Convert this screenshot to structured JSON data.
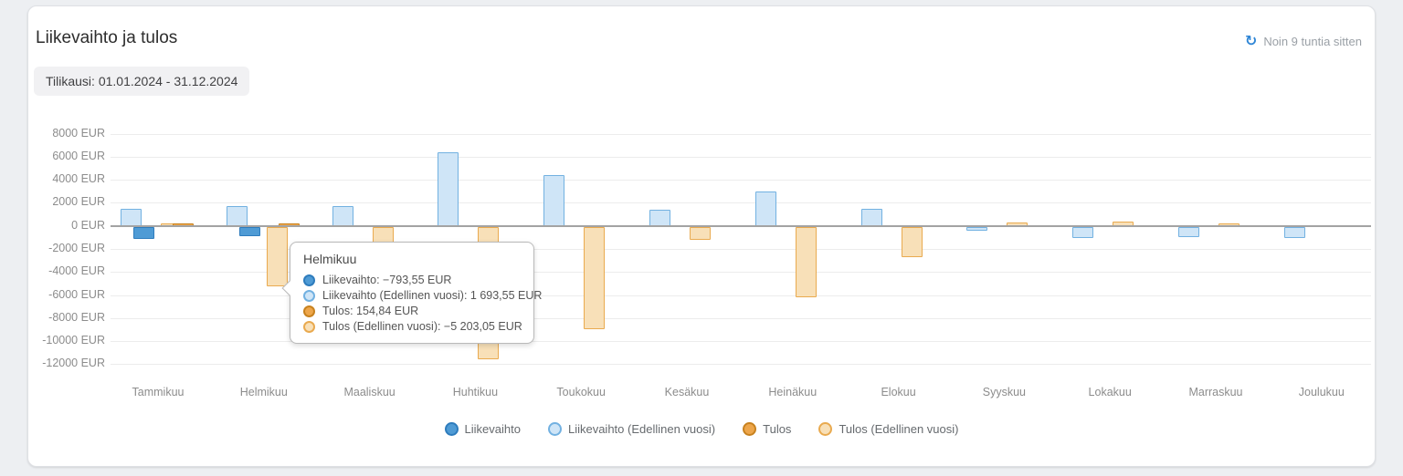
{
  "header": {
    "title": "Liikevaihto ja tulos",
    "period_badge": "Tilikausi: 01.01.2024 - 31.12.2024",
    "refresh_icon": "↻",
    "last_updated": "Noin 9 tuntia sitten"
  },
  "colors": {
    "revenue": {
      "fill": "#4f9bd5",
      "border": "#2e7cbd"
    },
    "revenue_prev": {
      "fill": "#cfe5f7",
      "border": "#72b1e1"
    },
    "result": {
      "fill": "#eda64b",
      "border": "#c8821f"
    },
    "result_prev": {
      "fill": "#f8e0b8",
      "border": "#e9aa4f"
    },
    "refresh_accent": "#2f86d6"
  },
  "chart_data": {
    "type": "bar",
    "title": "Liikevaihto ja tulos",
    "categories": [
      "Tammikuu",
      "Helmikuu",
      "Maaliskuu",
      "Huhtikuu",
      "Toukokuu",
      "Kesäkuu",
      "Heinäkuu",
      "Elokuu",
      "Syyskuu",
      "Lokakuu",
      "Marraskuu",
      "Joulukuu"
    ],
    "series": [
      {
        "key": "revenue",
        "name": "Liikevaihto",
        "values": [
          -1050,
          -793.55,
          0,
          0,
          0,
          0,
          0,
          0,
          0,
          0,
          0,
          0
        ]
      },
      {
        "key": "revenue_prev",
        "name": "Liikevaihto (Edellinen vuosi)",
        "values": [
          1500,
          1693.55,
          1700,
          6400,
          4430,
          1430,
          2950,
          1450,
          -350,
          -1000,
          -870,
          -950
        ]
      },
      {
        "key": "result",
        "name": "Tulos",
        "values": [
          160,
          154.84,
          0,
          0,
          0,
          0,
          0,
          0,
          0,
          0,
          0,
          0
        ]
      },
      {
        "key": "result_prev",
        "name": "Tulos (Edellinen vuosi)",
        "values": [
          210,
          -5203.05,
          -2500,
          -11500,
          -8900,
          -1150,
          -6100,
          -2600,
          280,
          380,
          60,
          0
        ]
      }
    ],
    "ylim": [
      -12000,
      8000
    ],
    "grid": true,
    "legend_position": "bottom",
    "y_ticks": [
      {
        "value": 8000,
        "label": "8000 EUR"
      },
      {
        "value": 6000,
        "label": "6000 EUR"
      },
      {
        "value": 4000,
        "label": "4000 EUR"
      },
      {
        "value": 2000,
        "label": "2000 EUR"
      },
      {
        "value": 0,
        "label": "0 EUR"
      },
      {
        "value": -2000,
        "label": "-2000 EUR"
      },
      {
        "value": -4000,
        "label": "-4000 EUR"
      },
      {
        "value": -6000,
        "label": "-6000 EUR"
      },
      {
        "value": -8000,
        "label": "-8000 EUR"
      },
      {
        "value": -10000,
        "label": "-10000 EUR"
      },
      {
        "value": -12000,
        "label": "-12000 EUR"
      }
    ]
  },
  "legend": {
    "items": [
      {
        "series": "revenue",
        "label": "Liikevaihto"
      },
      {
        "series": "revenue_prev",
        "label": "Liikevaihto (Edellinen vuosi)"
      },
      {
        "series": "result",
        "label": "Tulos"
      },
      {
        "series": "result_prev",
        "label": "Tulos (Edellinen vuosi)"
      }
    ]
  },
  "tooltip": {
    "title": "Helmikuu",
    "rows": [
      {
        "series": "revenue",
        "text": "Liikevaihto: −793,55 EUR"
      },
      {
        "series": "revenue_prev",
        "text": "Liikevaihto (Edellinen vuosi): 1 693,55 EUR"
      },
      {
        "series": "result",
        "text": "Tulos: 154,84 EUR"
      },
      {
        "series": "result_prev",
        "text": "Tulos (Edellinen vuosi): −5 203,05 EUR"
      }
    ]
  }
}
